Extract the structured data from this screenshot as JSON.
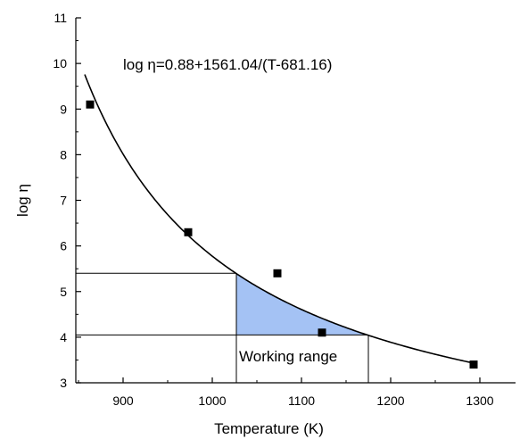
{
  "chart_data": {
    "type": "scatter",
    "xlabel": "Temperature (K)",
    "ylabel": "log η",
    "xlim": [
      847,
      1340
    ],
    "ylim": [
      3,
      11
    ],
    "xticks": [
      900,
      1000,
      1100,
      1200,
      1300
    ],
    "yticks": [
      3,
      4,
      5,
      6,
      7,
      8,
      9,
      10,
      11
    ],
    "grid": false,
    "points": [
      {
        "x": 863,
        "y": 9.1
      },
      {
        "x": 973,
        "y": 6.3
      },
      {
        "x": 1073,
        "y": 5.4
      },
      {
        "x": 1123,
        "y": 4.1
      },
      {
        "x": 1293,
        "y": 3.4
      }
    ],
    "fit": {
      "a": 0.88,
      "b": 1561.04,
      "c": 681.16,
      "x_from": 857,
      "x_to": 1295
    },
    "equation_label": "log η=0.88+1561.04/(T-681.16)",
    "working_range": {
      "label": "Working range",
      "x_from": 1027,
      "x_to": 1175,
      "y_upper": 5.4,
      "y_lower": 4.05,
      "fill_color": "#a4c2f4"
    },
    "colors": {
      "line": "#000000",
      "marker": "#000000"
    }
  }
}
